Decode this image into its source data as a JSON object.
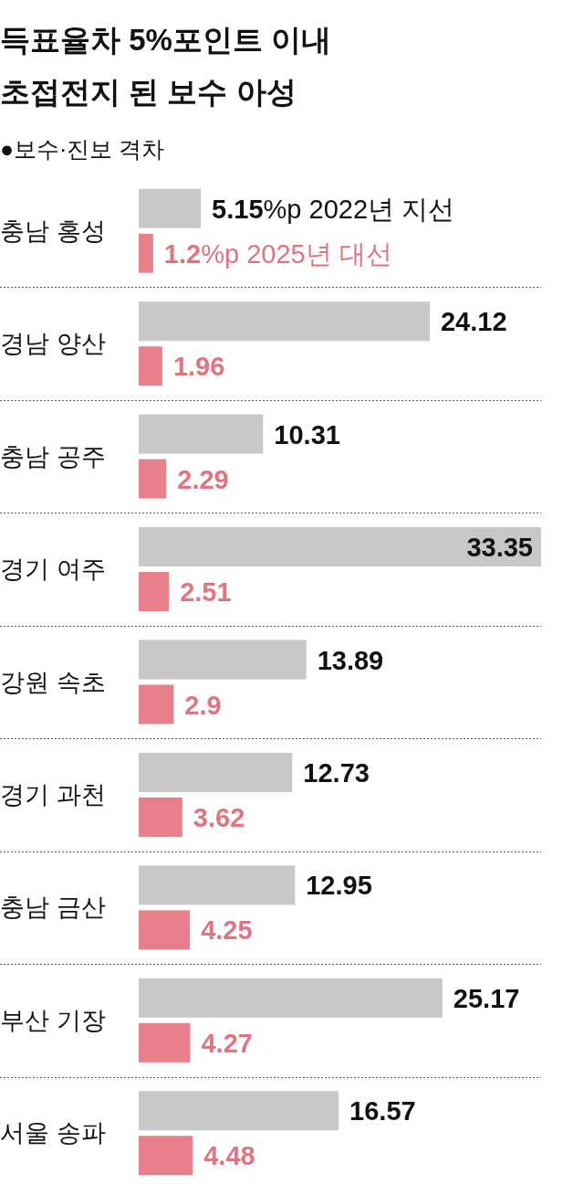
{
  "chart_data": {
    "type": "bar",
    "orientation": "horizontal",
    "title": "득표율차 5%포인트 이내 초접전지 된 보수 아성",
    "subtitle": "●보수·진보 격차",
    "categories": [
      "충남 홍성",
      "경남 양산",
      "충남 공주",
      "경기 여주",
      "강원 속초",
      "경기 과천",
      "충남 금산",
      "부산 기장",
      "서울 송파"
    ],
    "series": [
      {
        "name": "2022년 지선",
        "color": "#c8c8c8",
        "values": [
          5.15,
          24.12,
          10.31,
          33.35,
          13.89,
          12.73,
          12.95,
          25.17,
          16.57
        ],
        "value_labels": [
          "5.15%p",
          "24.12",
          "10.31",
          "33.35",
          "13.89",
          "12.73",
          "12.95",
          "25.17",
          "16.57"
        ]
      },
      {
        "name": "2025년 대선",
        "color": "#e8808c",
        "values": [
          1.2,
          1.96,
          2.29,
          2.51,
          2.9,
          3.62,
          4.25,
          4.27,
          4.48
        ],
        "value_labels": [
          "1.2%p",
          "1.96",
          "2.29",
          "2.51",
          "2.9",
          "3.62",
          "4.25",
          "4.27",
          "4.48"
        ]
      }
    ],
    "grid": "y"
  }
}
